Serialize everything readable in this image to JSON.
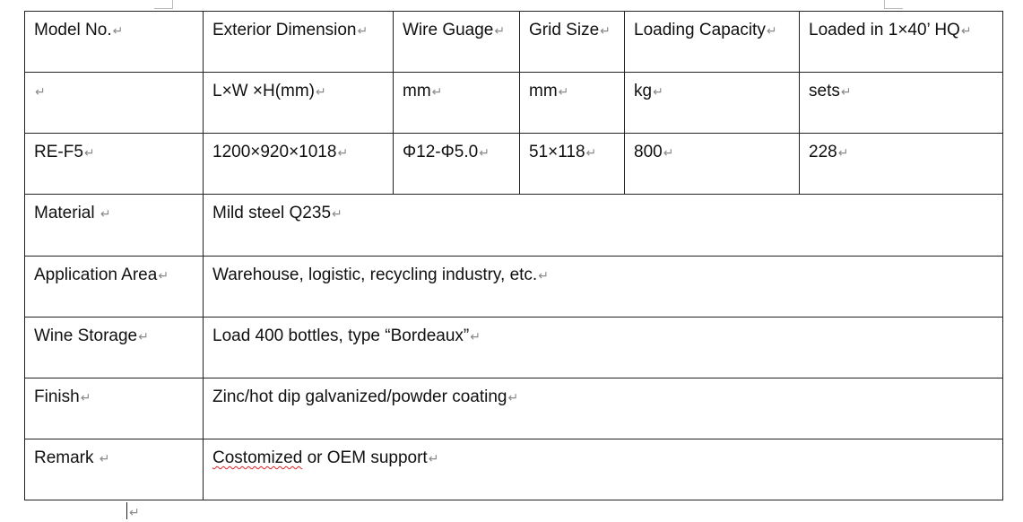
{
  "table": {
    "rows": [
      {
        "cells": [
          "Model No.",
          "Exterior Dimension",
          "Wire Guage",
          "Grid Size",
          "Loading Capacity",
          "Loaded in 1×40’ HQ"
        ]
      },
      {
        "cells": [
          "",
          "L×W  ×H(mm)",
          "mm",
          "mm",
          "kg",
          "sets"
        ]
      },
      {
        "cells": [
          "RE-F5",
          "1200×920×1018",
          "Φ12-Φ5.0",
          "51×118",
          "800",
          "228"
        ]
      },
      {
        "label": "Material ",
        "value": "Mild steel Q235"
      },
      {
        "label": "Application Area",
        "value": "Warehouse, logistic, recycling industry, etc."
      },
      {
        "label": "Wine Storage",
        "value": "Load 400 bottles, type “Bordeaux”"
      },
      {
        "label": "Finish",
        "value": "Zinc/hot dip galvanized/powder coating"
      },
      {
        "label": "Remark ",
        "value_misspelled": "Costomized",
        "value_rest": " or OEM support"
      }
    ]
  }
}
